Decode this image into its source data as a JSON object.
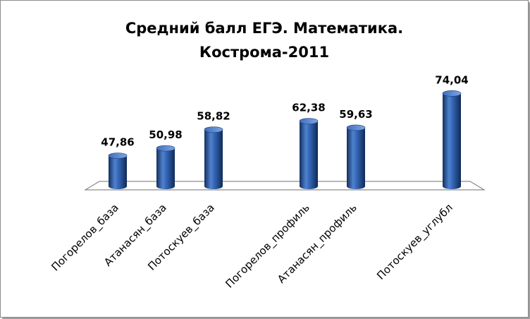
{
  "chart_data": {
    "type": "bar",
    "title": "Средний балл ЕГЭ. Математика.",
    "subtitle": "Кострома-2011",
    "xlabel": "",
    "ylabel": "",
    "grid": false,
    "legend": "none",
    "categories": [
      "Погорелов_база",
      "Атанасян_база",
      "Потоскуев_база",
      "Погорелов_профиль",
      "Атанасян_профиль",
      "Потоскуев_углубл"
    ],
    "values": [
      47.86,
      50.98,
      58.82,
      62.38,
      59.63,
      74.04
    ],
    "value_labels": [
      "47,86",
      "50,98",
      "58,82",
      "62,38",
      "59,63",
      "74,04"
    ],
    "ylim": [
      35,
      78
    ],
    "bar_color": "#2a5aa8"
  }
}
